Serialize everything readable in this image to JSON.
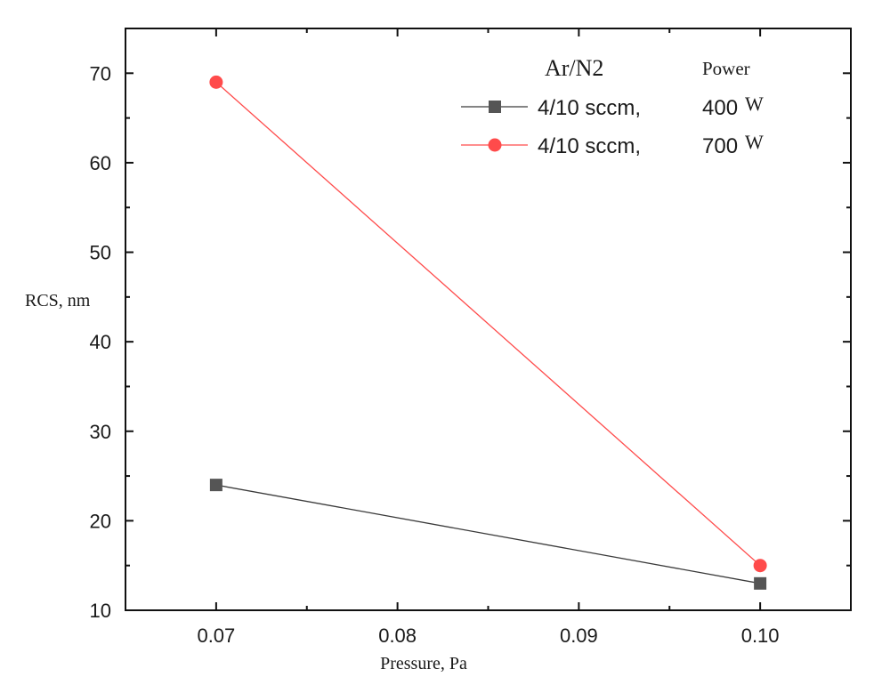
{
  "chart_data": {
    "type": "line",
    "xlabel": "Pressure, Pa",
    "ylabel": "RCS, nm",
    "xlim": [
      0.065,
      0.105
    ],
    "ylim": [
      10,
      75
    ],
    "x_ticks": [
      "0.07",
      "0.08",
      "0.09",
      "0.10"
    ],
    "y_ticks": [
      "10",
      "20",
      "30",
      "40",
      "50",
      "60",
      "70"
    ],
    "x": [
      0.07,
      0.1
    ],
    "legend_header": {
      "gas": "Ar/N2",
      "power": "Power"
    },
    "legend_placement": "top-right",
    "grid": false,
    "series": [
      {
        "label": "4/10 sccm,",
        "power_value": "400",
        "power_unit": "W",
        "marker": "square",
        "color": "#555555",
        "line_color": "#3a3a3a",
        "values": [
          24,
          13
        ]
      },
      {
        "label": "4/10  sccm,",
        "power_value": "700",
        "power_unit": "W",
        "marker": "circle",
        "color": "#ff4b4b",
        "line_color": "#ff4b4b",
        "values": [
          69,
          15
        ]
      }
    ]
  }
}
